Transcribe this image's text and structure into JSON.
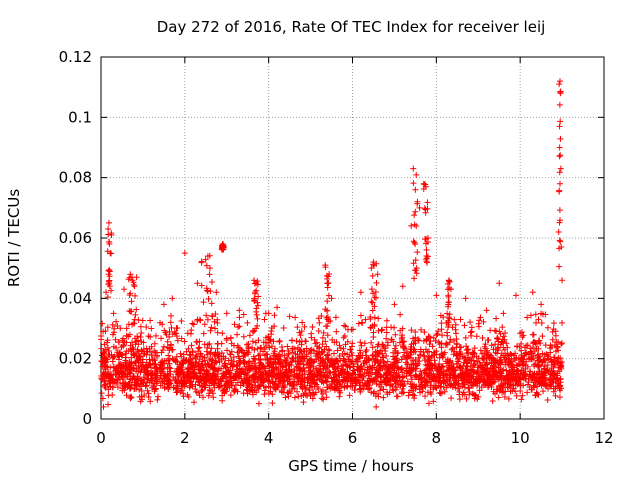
{
  "chart_data": {
    "type": "scatter",
    "title": "Day 272 of 2016, Rate Of TEC Index for receiver leij",
    "xlabel": "GPS time / hours",
    "ylabel": "ROTI / TECUs",
    "xlim": [
      0,
      12
    ],
    "ylim": [
      0,
      0.12
    ],
    "xticks": [
      0,
      2,
      4,
      6,
      8,
      10,
      12
    ],
    "yticks": [
      0,
      0.02,
      0.04,
      0.06,
      0.08,
      0.1,
      0.12
    ],
    "xtick_labels": [
      "0",
      "2",
      "4",
      "6",
      "8",
      "10",
      "12"
    ],
    "ytick_labels": [
      "0",
      "0.02",
      "0.04",
      "0.06",
      "0.08",
      "0.1",
      "0.12"
    ],
    "grid": true,
    "marker": "+",
    "series_color": "#ff0000",
    "series": [
      {
        "name": "ROTI",
        "x_range": [
          0,
          11
        ],
        "baseline": 0.015,
        "spread": 0.006,
        "floor": 0.004,
        "density_per_hour": 300,
        "bursts": [
          {
            "x": 0.2,
            "width": 0.1,
            "y_min": 0.04,
            "y_max": 0.065
          },
          {
            "x": 0.75,
            "width": 0.2,
            "y_min": 0.03,
            "y_max": 0.048
          },
          {
            "x": 2.5,
            "width": 0.3,
            "y_min": 0.03,
            "y_max": 0.055
          },
          {
            "x": 2.9,
            "width": 0.05,
            "y_min": 0.056,
            "y_max": 0.058
          },
          {
            "x": 3.7,
            "width": 0.1,
            "y_min": 0.03,
            "y_max": 0.046
          },
          {
            "x": 5.4,
            "width": 0.1,
            "y_min": 0.03,
            "y_max": 0.051
          },
          {
            "x": 6.5,
            "width": 0.15,
            "y_min": 0.03,
            "y_max": 0.052
          },
          {
            "x": 7.5,
            "width": 0.1,
            "y_min": 0.04,
            "y_max": 0.083
          },
          {
            "x": 7.75,
            "width": 0.1,
            "y_min": 0.05,
            "y_max": 0.078
          },
          {
            "x": 8.3,
            "width": 0.05,
            "y_min": 0.03,
            "y_max": 0.046
          },
          {
            "x": 10.95,
            "width": 0.05,
            "y_min": 0.05,
            "y_max": 0.112
          }
        ],
        "points": [
          [
            0.05,
            0.029
          ],
          [
            0.12,
            0.042
          ],
          [
            0.17,
            0.063
          ],
          [
            0.19,
            0.065
          ],
          [
            0.2,
            0.058
          ],
          [
            0.22,
            0.055
          ],
          [
            0.25,
            0.061
          ],
          [
            0.3,
            0.035
          ],
          [
            0.55,
            0.043
          ],
          [
            0.7,
            0.048
          ],
          [
            0.75,
            0.046
          ],
          [
            0.8,
            0.044
          ],
          [
            0.85,
            0.047
          ],
          [
            1.2,
            0.03
          ],
          [
            1.5,
            0.038
          ],
          [
            1.7,
            0.04
          ],
          [
            2.0,
            0.055
          ],
          [
            2.3,
            0.045
          ],
          [
            2.55,
            0.054
          ],
          [
            2.6,
            0.05
          ],
          [
            2.75,
            0.042
          ],
          [
            2.9,
            0.058
          ],
          [
            3.0,
            0.035
          ],
          [
            3.3,
            0.036
          ],
          [
            3.65,
            0.046
          ],
          [
            3.7,
            0.045
          ],
          [
            3.9,
            0.033
          ],
          [
            4.0,
            0.035
          ],
          [
            4.2,
            0.037
          ],
          [
            4.5,
            0.034
          ],
          [
            4.8,
            0.032
          ],
          [
            5.35,
            0.051
          ],
          [
            5.4,
            0.045
          ],
          [
            5.5,
            0.04
          ],
          [
            5.8,
            0.031
          ],
          [
            6.2,
            0.042
          ],
          [
            6.45,
            0.05
          ],
          [
            6.5,
            0.052
          ],
          [
            6.6,
            0.048
          ],
          [
            7.0,
            0.038
          ],
          [
            7.2,
            0.044
          ],
          [
            7.4,
            0.064
          ],
          [
            7.45,
            0.083
          ],
          [
            7.5,
            0.076
          ],
          [
            7.55,
            0.072
          ],
          [
            7.6,
            0.07
          ],
          [
            7.7,
            0.078
          ],
          [
            7.75,
            0.077
          ],
          [
            7.8,
            0.06
          ],
          [
            7.75,
            0.053
          ],
          [
            8.0,
            0.041
          ],
          [
            8.3,
            0.046
          ],
          [
            8.35,
            0.043
          ],
          [
            8.7,
            0.04
          ],
          [
            9.2,
            0.036
          ],
          [
            9.5,
            0.045
          ],
          [
            9.9,
            0.041
          ],
          [
            10.3,
            0.042
          ],
          [
            10.5,
            0.038
          ],
          [
            10.93,
            0.111
          ],
          [
            10.95,
            0.112
          ],
          [
            10.96,
            0.108
          ],
          [
            10.94,
            0.097
          ],
          [
            10.97,
            0.083
          ],
          [
            10.95,
            0.078
          ],
          [
            10.92,
            0.062
          ],
          [
            10.98,
            0.057
          ],
          [
            11.0,
            0.046
          ]
        ]
      }
    ]
  }
}
